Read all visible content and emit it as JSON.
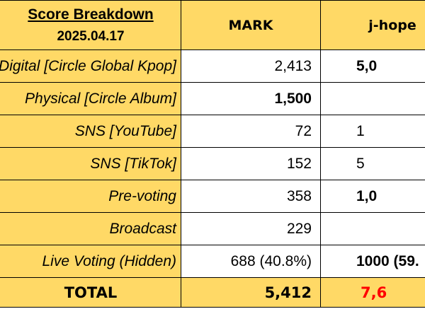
{
  "header": {
    "title": "Score Breakdown",
    "date": "2025.04.17",
    "col_mark": "MARK",
    "col_jhope": "j-hope"
  },
  "rows": [
    {
      "label": "Digital [Circle Global Kpop]",
      "mark": "2,413",
      "mark_bold": false,
      "jhope": "5,0",
      "jhope_bold": true
    },
    {
      "label": "Physical [Circle Album]",
      "mark": "1,500",
      "mark_bold": true,
      "jhope": "",
      "jhope_bold": false
    },
    {
      "label": "SNS [YouTube]",
      "mark": "72",
      "mark_bold": false,
      "jhope": "1",
      "jhope_bold": false
    },
    {
      "label": "SNS [TikTok]",
      "mark": "152",
      "mark_bold": false,
      "jhope": "5",
      "jhope_bold": false
    },
    {
      "label": "Pre-voting",
      "mark": "358",
      "mark_bold": false,
      "jhope": "1,0",
      "jhope_bold": true
    },
    {
      "label": "Broadcast",
      "mark": "229",
      "mark_bold": false,
      "jhope": "",
      "jhope_bold": false
    },
    {
      "label": "Live Voting (Hidden)",
      "mark": "688 (40.8%)",
      "mark_bold": false,
      "jhope": "1000 (59.",
      "jhope_bold": true
    }
  ],
  "total": {
    "label": "TOTAL",
    "mark": "5,412",
    "jhope": "7,6",
    "jhope_color": "#ff0000"
  },
  "colors": {
    "header_fill": "#ffd966",
    "cell_fill": "#ffffff",
    "border": "#000000"
  }
}
